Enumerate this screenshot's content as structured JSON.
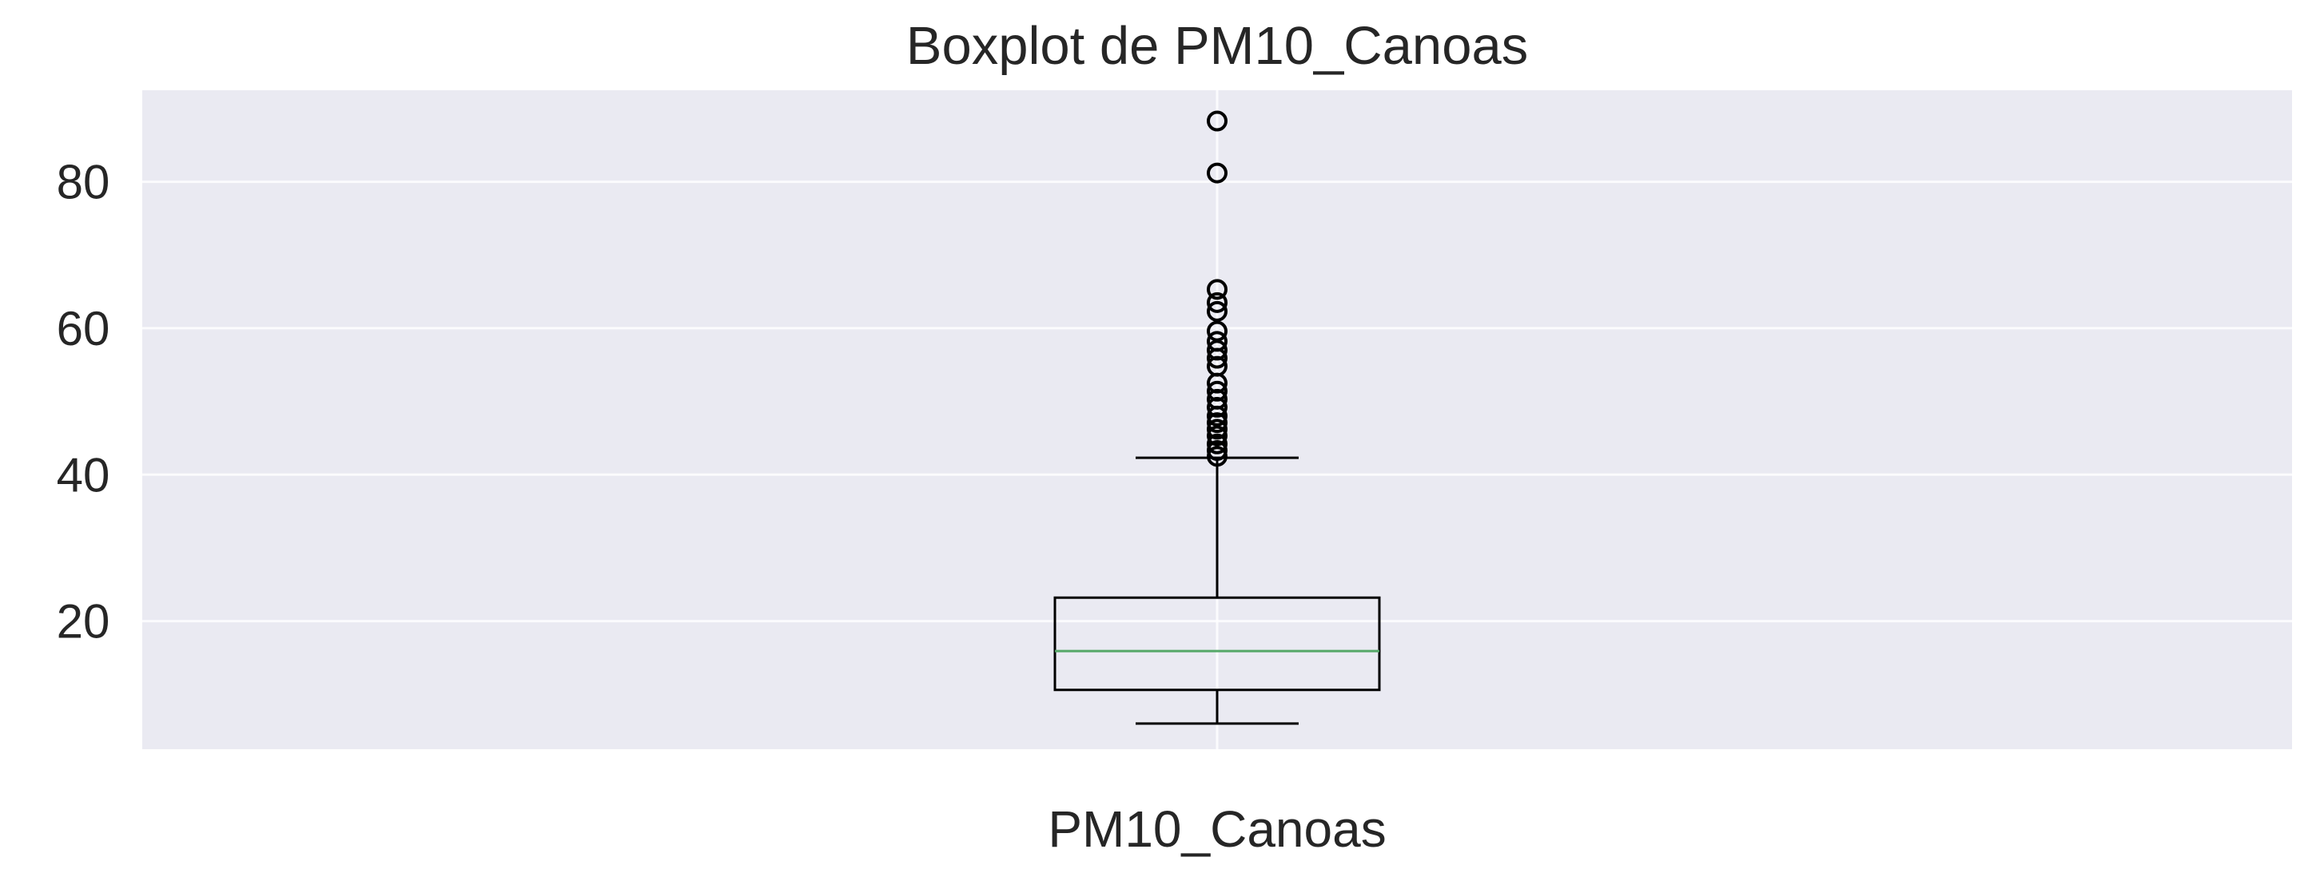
{
  "chart_data": {
    "type": "boxplot",
    "title": "Boxplot de PM10_Canoas",
    "categories": [
      "PM10_Canoas"
    ],
    "xlabel": "",
    "ylabel": "",
    "ylim": [
      2.5,
      92.5
    ],
    "yticks": [
      20,
      40,
      60,
      80
    ],
    "grid": true,
    "legend": "none",
    "boxes": [
      {
        "label": "PM10_Canoas",
        "whisker_low": 6,
        "q1": 10.6,
        "median": 15.9,
        "q3": 23.2,
        "whisker_high": 42.3,
        "outliers": [
          88.3,
          81.2,
          65.3,
          63.5,
          62.3,
          59.6,
          58.2,
          57.0,
          55.9,
          54.8,
          52.5,
          51.4,
          50.3,
          49.2,
          48.0,
          47.1,
          46.2,
          45.3,
          44.2,
          43.3,
          42.5
        ]
      }
    ],
    "colors": {
      "background": "#EAEAF2",
      "grid": "#FFFFFF",
      "box": "#000000",
      "median": "#55A868",
      "text": "#262626"
    }
  }
}
